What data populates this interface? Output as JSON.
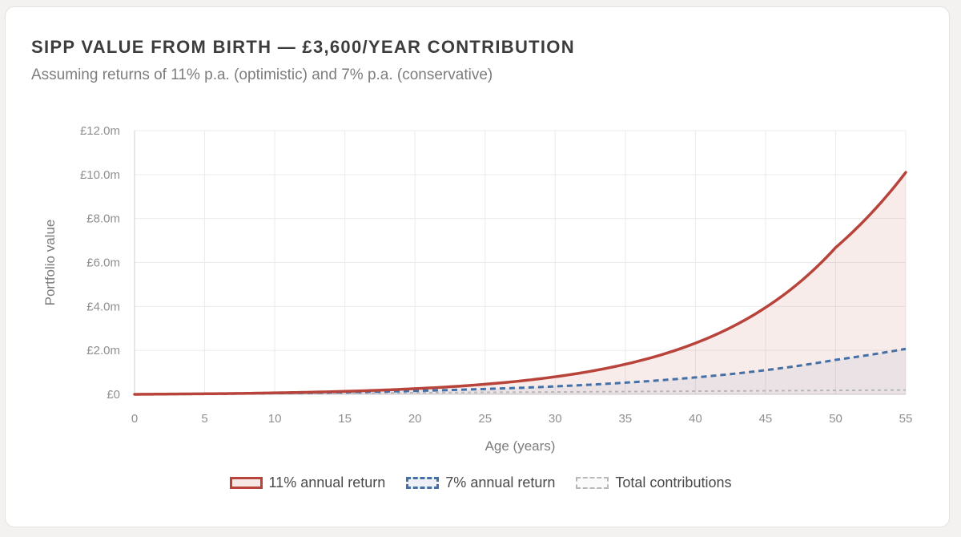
{
  "header": {
    "title": "SIPP VALUE FROM BIRTH — £3,600/YEAR CONTRIBUTION",
    "subtitle": "Assuming returns of 11% p.a. (optimistic) and 7% p.a. (conservative)"
  },
  "chart_data": {
    "type": "line",
    "title": "SIPP VALUE FROM BIRTH — £3,600/YEAR CONTRIBUTION",
    "subtitle": "Assuming returns of 11% p.a. (optimistic) and 7% p.a. (conservative)",
    "xlabel": "Age (years)",
    "ylabel": "Portfolio value",
    "xlim": [
      0,
      55
    ],
    "ylim": [
      0,
      12
    ],
    "x_ticks": [
      0,
      5,
      10,
      15,
      20,
      25,
      30,
      35,
      40,
      45,
      50,
      55
    ],
    "y_ticks": [
      0,
      2,
      4,
      6,
      8,
      10,
      12
    ],
    "y_tick_labels": [
      "£0",
      "£2.0m",
      "£4.0m",
      "£6.0m",
      "£8.0m",
      "£10.0m",
      "£12.0m"
    ],
    "y_units": "£ millions",
    "grid": true,
    "legend_position": "bottom",
    "x": [
      0,
      5,
      10,
      15,
      20,
      25,
      30,
      35,
      40,
      45,
      50,
      55
    ],
    "series": [
      {
        "name": "11% annual return",
        "style": "solid-filled",
        "color": "#b8433a",
        "values": [
          0.0,
          0.025,
          0.067,
          0.138,
          0.258,
          0.46,
          0.8,
          1.37,
          2.33,
          3.95,
          6.68,
          10.1
        ]
      },
      {
        "name": "7% annual return",
        "style": "dashed",
        "color": "#4470a6",
        "values": [
          0.0,
          0.022,
          0.053,
          0.097,
          0.158,
          0.243,
          0.363,
          0.532,
          0.77,
          1.1,
          1.57,
          2.07
        ]
      },
      {
        "name": "Total contributions",
        "style": "dotted",
        "color": "#b8b8b8",
        "values": [
          0.0,
          0.018,
          0.036,
          0.054,
          0.072,
          0.09,
          0.108,
          0.126,
          0.144,
          0.162,
          0.18,
          0.198
        ]
      }
    ]
  },
  "legend": {
    "items": [
      {
        "label": "11% annual return"
      },
      {
        "label": "7% annual return"
      },
      {
        "label": "Total contributions"
      }
    ]
  }
}
